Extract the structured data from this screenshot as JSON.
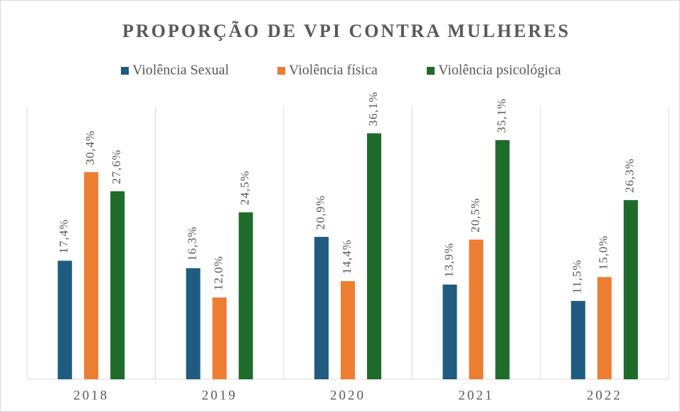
{
  "chart_data": {
    "type": "bar",
    "title": "PROPORÇÃO DE VPI CONTRA MULHERES",
    "categories": [
      "2018",
      "2019",
      "2020",
      "2021",
      "2022"
    ],
    "series": [
      {
        "name": "Violência Sexual",
        "color": "#1f5c80",
        "values": [
          17.4,
          16.3,
          20.9,
          13.9,
          11.5
        ],
        "value_labels": [
          "17,4%",
          "16,3%",
          "20,9%",
          "13,9%",
          "11,5%"
        ]
      },
      {
        "name": "Violência física",
        "color": "#ed7d31",
        "values": [
          30.4,
          12.0,
          14.4,
          20.5,
          15.0
        ],
        "value_labels": [
          "30,4%",
          "12,0%",
          "14,4%",
          "20,5%",
          "15,0%"
        ]
      },
      {
        "name": "Violência psicológica",
        "color": "#1e6b2a",
        "values": [
          27.6,
          24.5,
          36.1,
          35.1,
          26.3
        ],
        "value_labels": [
          "27,6%",
          "24,5%",
          "36,1%",
          "35,1%",
          "26,3%"
        ]
      }
    ],
    "ylim": [
      0,
      40
    ],
    "legend": "top"
  }
}
